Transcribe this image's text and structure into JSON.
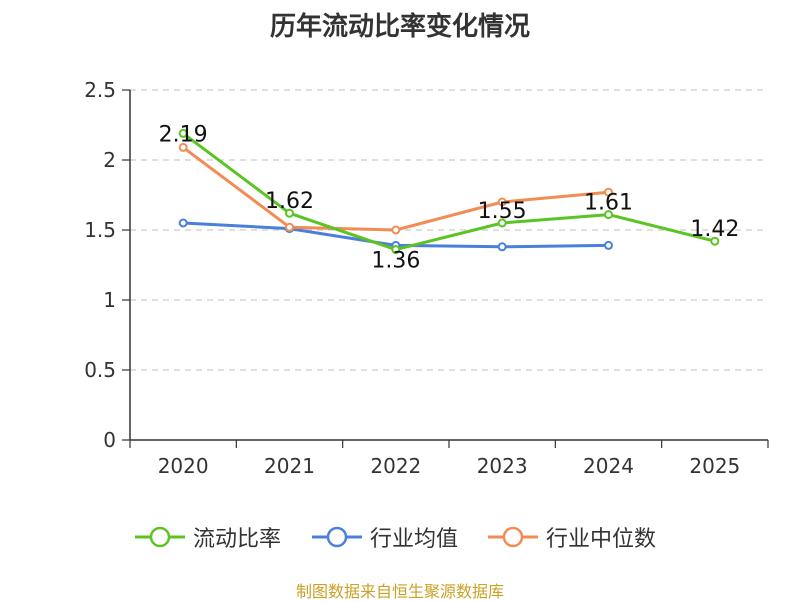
{
  "chart_data": {
    "type": "line",
    "title": "历年流动比率变化情况",
    "categories": [
      "2020",
      "2021",
      "2022",
      "2023",
      "2024",
      "2025"
    ],
    "ylim": [
      0,
      2.5
    ],
    "yticks": [
      "0",
      "0.5",
      "1",
      "1.5",
      "2",
      "2.5"
    ],
    "grid": true,
    "legend_position": "bottom",
    "series": [
      {
        "name": "流动比率",
        "color": "#5bc424",
        "values": [
          2.19,
          1.62,
          1.36,
          1.55,
          1.61,
          1.42
        ],
        "labels": [
          "2.19",
          "1.62",
          "1.36",
          "1.55",
          "1.61",
          "1.42"
        ]
      },
      {
        "name": "行业均值",
        "color": "#4a7fdb",
        "values": [
          1.55,
          1.51,
          1.39,
          1.38,
          1.39,
          null
        ]
      },
      {
        "name": "行业中位数",
        "color": "#f28c55",
        "values": [
          2.09,
          1.52,
          1.5,
          1.7,
          1.77,
          null
        ]
      }
    ]
  },
  "source": "制图数据来自恒生聚源数据库"
}
